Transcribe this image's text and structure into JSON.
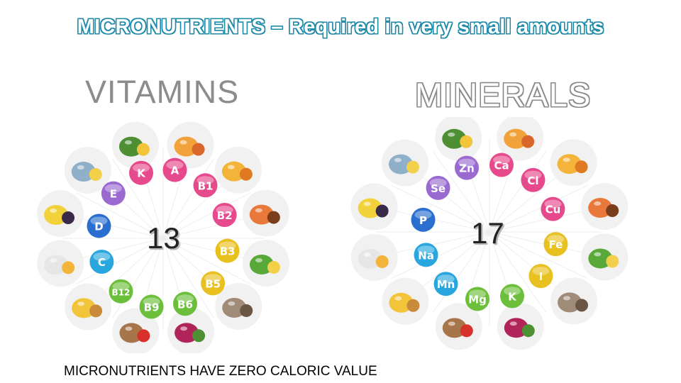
{
  "slide": {
    "title": "MICRONUTRIENTS – Required in very small amounts",
    "footer": "MICRONUTRIENTS HAVE ZERO CALORIC VALUE"
  },
  "vitamins": {
    "heading": "VITAMINS",
    "count": "13",
    "badges": [
      {
        "label": "A",
        "color": "#e64a8c"
      },
      {
        "label": "B1",
        "color": "#e64a8c"
      },
      {
        "label": "B2",
        "color": "#e64a8c"
      },
      {
        "label": "B3",
        "color": "#e8c020"
      },
      {
        "label": "B5",
        "color": "#e8c020"
      },
      {
        "label": "B6",
        "color": "#6cbf3a"
      },
      {
        "label": "B9",
        "color": "#6cbf3a"
      },
      {
        "label": "B12",
        "color": "#6cbf3a"
      },
      {
        "label": "C",
        "color": "#2aa6df"
      },
      {
        "label": "D",
        "color": "#2a6fd0"
      },
      {
        "label": "E",
        "color": "#9a6ad0"
      },
      {
        "label": "K",
        "color": "#e64a8c"
      }
    ],
    "foods": [
      "tea-icon",
      "orange-carrot-icon",
      "pumpkin-icon",
      "broccoli-egg-icon",
      "mushroom-icon",
      "beet-icon",
      "nuts-strawberry-icon",
      "banana-onion-icon",
      "milk-egg-icon",
      "quince-berries-icon",
      "fish-cheese-icon",
      "peas-icon"
    ]
  },
  "minerals": {
    "heading": "MINERALS",
    "count": "17",
    "badges": [
      {
        "label": "Ca",
        "color": "#e64a8c"
      },
      {
        "label": "Cl",
        "color": "#e64a8c"
      },
      {
        "label": "Cu",
        "color": "#e64a8c"
      },
      {
        "label": "Fe",
        "color": "#e8c020"
      },
      {
        "label": "I",
        "color": "#e8c020"
      },
      {
        "label": "K",
        "color": "#6cbf3a"
      },
      {
        "label": "Mg",
        "color": "#6cbf3a"
      },
      {
        "label": "Mn",
        "color": "#2aa6df"
      },
      {
        "label": "Na",
        "color": "#2aa6df"
      },
      {
        "label": "P",
        "color": "#2a6fd0"
      },
      {
        "label": "Se",
        "color": "#9a6ad0"
      },
      {
        "label": "Zn",
        "color": "#9a6ad0"
      }
    ],
    "foods": [
      "rice-icon",
      "shrimp-icon",
      "squid-icon",
      "lettuce-icon",
      "fish-icon",
      "pumpkin-coffee-icon",
      "grain-hazelnut-icon",
      "almond-garlic-icon",
      "salt-dried-fruit-icon",
      "pumpkin-nuts-icon",
      "cheese-icon",
      "meat-peas-icon"
    ]
  }
}
